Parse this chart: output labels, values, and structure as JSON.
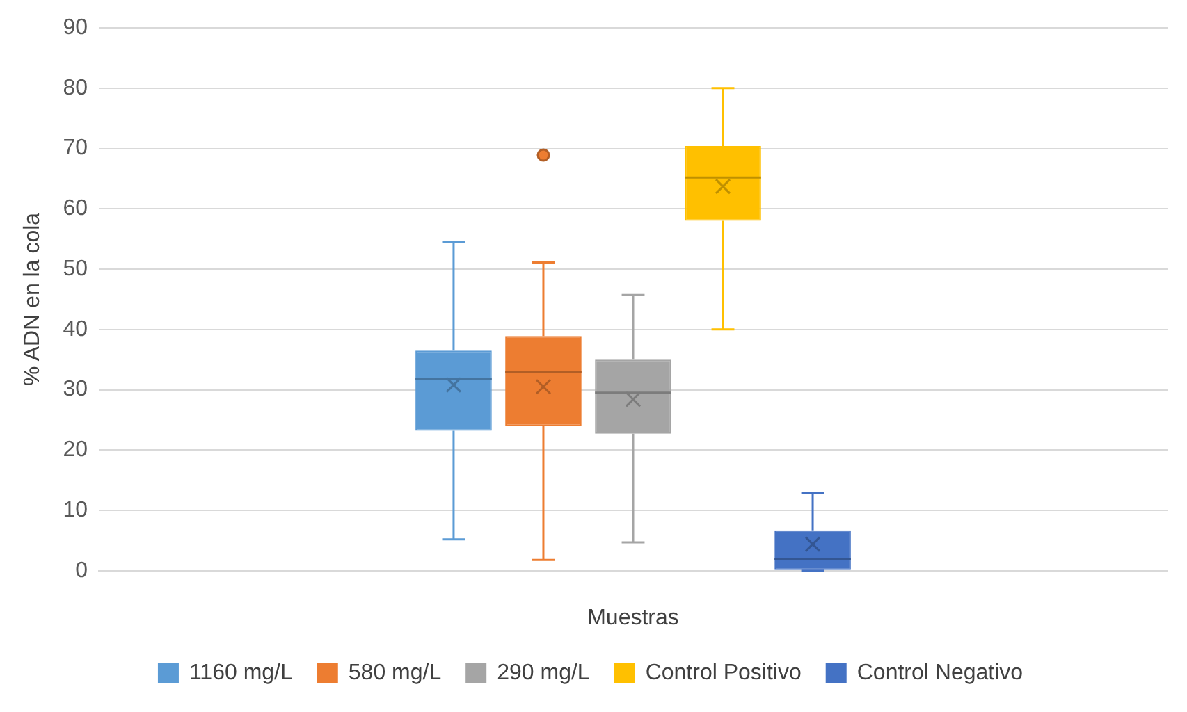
{
  "chart_data": {
    "type": "box",
    "ylabel": "% ADN en la cola",
    "xlabel": "Muestras",
    "categories": [
      null
    ],
    "ylim": [
      0,
      90
    ],
    "yticks": [
      0,
      10,
      20,
      30,
      40,
      50,
      60,
      70,
      80,
      90
    ],
    "grid": "y",
    "legend": "bottom",
    "series": [
      {
        "name": "1160 mg/L",
        "color": "#5b9bd5",
        "boxes": [
          {
            "low": 5.2,
            "q1": 23.2,
            "median": 31.8,
            "q3": 36.5,
            "high": 54.5,
            "mean": 30.8
          }
        ]
      },
      {
        "name": "580 mg/L",
        "color": "#ed7d31",
        "boxes": [
          {
            "low": 1.8,
            "q1": 24,
            "median": 32.9,
            "q3": 38.9,
            "high": 51.1,
            "mean": 30.5,
            "outliers": [
              68.9
            ]
          }
        ]
      },
      {
        "name": "290 mg/L",
        "color": "#a5a5a5",
        "boxes": [
          {
            "low": 4.7,
            "q1": 22.7,
            "median": 29.5,
            "q3": 35,
            "high": 45.7,
            "mean": 28.4
          }
        ]
      },
      {
        "name": "Control Positivo",
        "color": "#ffc000",
        "boxes": [
          {
            "low": 40,
            "q1": 58,
            "median": 65.2,
            "q3": 70.4,
            "high": 80,
            "mean": 63.7
          }
        ]
      },
      {
        "name": "Control Negativo",
        "color": "#4472c4",
        "boxes": [
          {
            "low": 0,
            "q1": 0,
            "median": 2,
            "q3": 6.7,
            "high": 12.9,
            "mean": 4.4
          }
        ]
      }
    ]
  }
}
